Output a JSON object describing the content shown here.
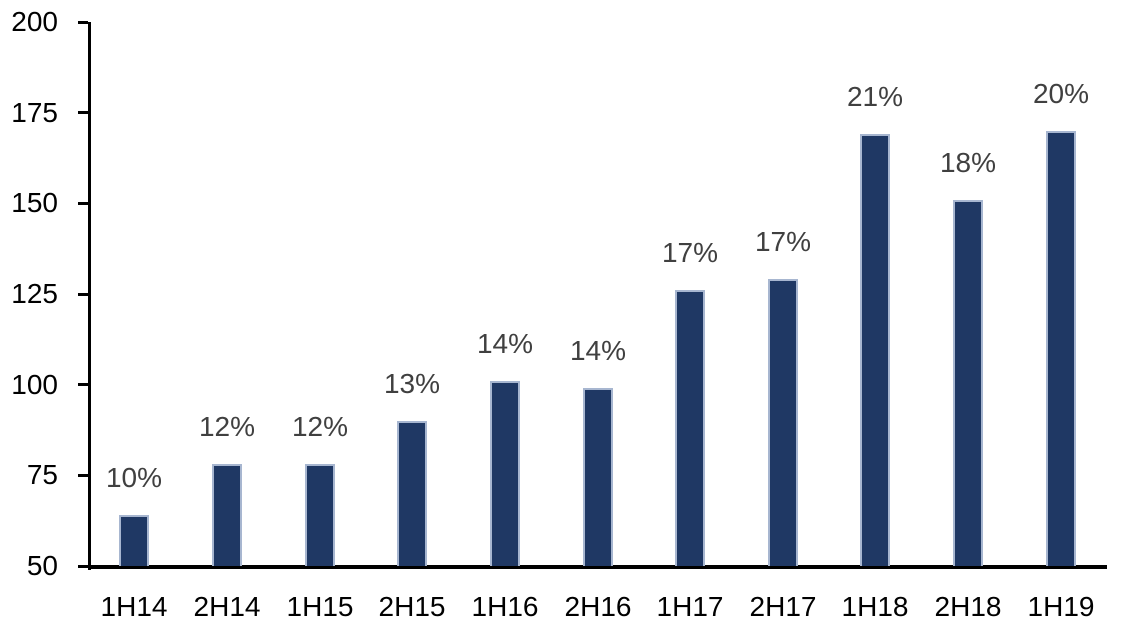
{
  "chart_data": {
    "type": "bar",
    "title": "",
    "xlabel": "",
    "ylabel": "",
    "categories": [
      "1H14",
      "2H14",
      "1H15",
      "2H15",
      "1H16",
      "2H16",
      "1H17",
      "2H17",
      "1H18",
      "2H18",
      "1H19"
    ],
    "values": [
      64,
      78,
      78,
      90,
      101,
      99,
      126,
      129,
      169,
      151,
      170
    ],
    "bar_labels": [
      "10%",
      "12%",
      "12%",
      "13%",
      "14%",
      "14%",
      "17%",
      "17%",
      "21%",
      "18%",
      "20%"
    ],
    "y_ticks": [
      50,
      75,
      100,
      125,
      150,
      175,
      200
    ],
    "ylim": [
      50,
      200
    ],
    "grid": false,
    "legend_position": "none",
    "colors": {
      "bar_fill": "#1F3864",
      "bar_border": "#A7B6D0",
      "data_label": "#404040",
      "axis": "#000000",
      "tick_label": "#000000",
      "background": "#FFFFFF"
    }
  }
}
